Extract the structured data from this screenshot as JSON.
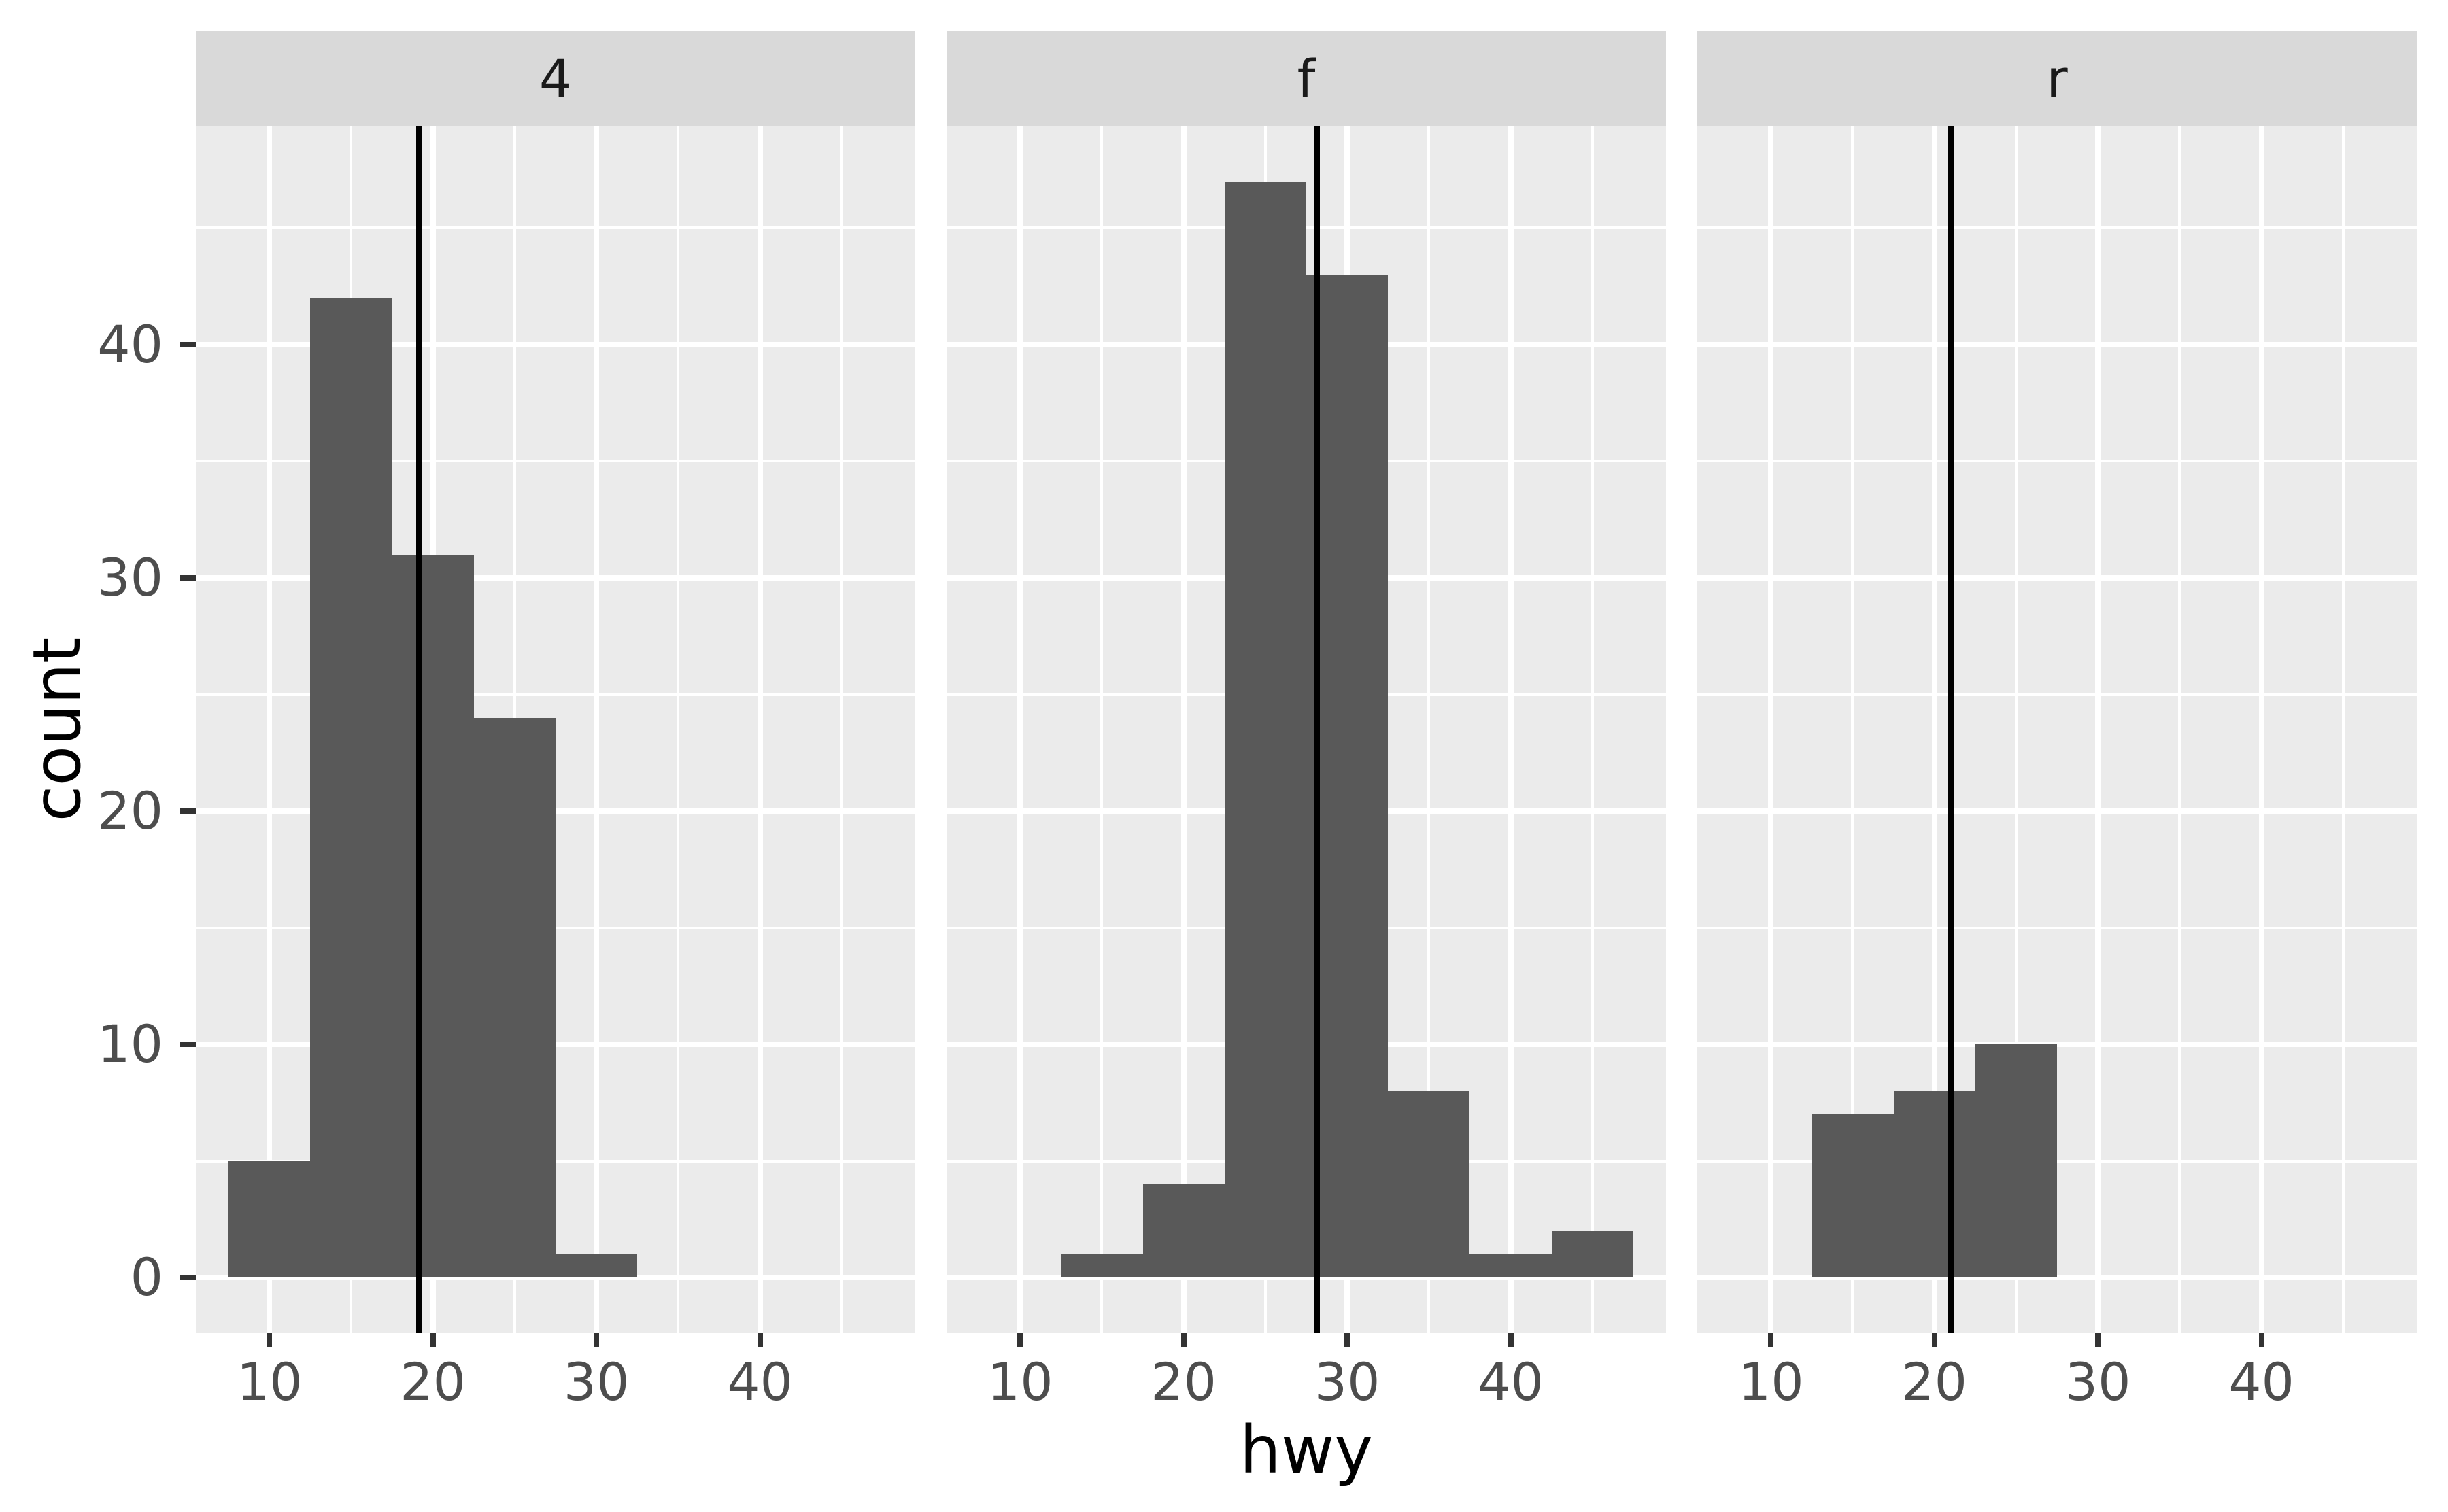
{
  "chart_data": {
    "type": "histogram",
    "title": "",
    "xlabel": "hwy",
    "ylabel": "count",
    "facet_labels": [
      "4",
      "f",
      "r"
    ],
    "binwidth": 5,
    "x_range": [
      5.5,
      49.5
    ],
    "y_range": [
      -2.35,
      49.35
    ],
    "x_ticks": [
      10,
      20,
      30,
      40
    ],
    "y_ticks": [
      0,
      10,
      20,
      30,
      40
    ],
    "x_minor": [
      15,
      25,
      35,
      45
    ],
    "y_minor": [
      5,
      15,
      25,
      35,
      45
    ],
    "grid": true,
    "legend": "none",
    "facets": [
      {
        "label": "4",
        "vline": 19.17,
        "bins": [
          {
            "from": 7.5,
            "to": 12.5,
            "count": 5
          },
          {
            "from": 12.5,
            "to": 17.5,
            "count": 42
          },
          {
            "from": 17.5,
            "to": 22.5,
            "count": 31
          },
          {
            "from": 22.5,
            "to": 27.5,
            "count": 24
          },
          {
            "from": 27.5,
            "to": 32.5,
            "count": 1
          }
        ]
      },
      {
        "label": "f",
        "vline": 28.16,
        "bins": [
          {
            "from": 12.5,
            "to": 17.5,
            "count": 1
          },
          {
            "from": 17.5,
            "to": 22.5,
            "count": 4
          },
          {
            "from": 22.5,
            "to": 27.5,
            "count": 47
          },
          {
            "from": 27.5,
            "to": 32.5,
            "count": 43
          },
          {
            "from": 32.5,
            "to": 37.5,
            "count": 8
          },
          {
            "from": 37.5,
            "to": 42.5,
            "count": 1
          },
          {
            "from": 42.5,
            "to": 47.5,
            "count": 2
          }
        ]
      },
      {
        "label": "r",
        "vline": 21.0,
        "bins": [
          {
            "from": 12.5,
            "to": 17.5,
            "count": 7
          },
          {
            "from": 17.5,
            "to": 22.5,
            "count": 8
          },
          {
            "from": 22.5,
            "to": 27.5,
            "count": 10
          }
        ]
      }
    ],
    "colors": {
      "bar": "#595959",
      "panel_bg": "#EBEBEB",
      "strip_bg": "#D9D9D9",
      "strip_text": "#1A1A1A",
      "gridline": "#FFFFFF",
      "tick_mark": "#333333",
      "tick_label": "#4D4D4D",
      "axis_title": "#000000",
      "vline": "#000000",
      "background": "#FFFFFF"
    }
  }
}
